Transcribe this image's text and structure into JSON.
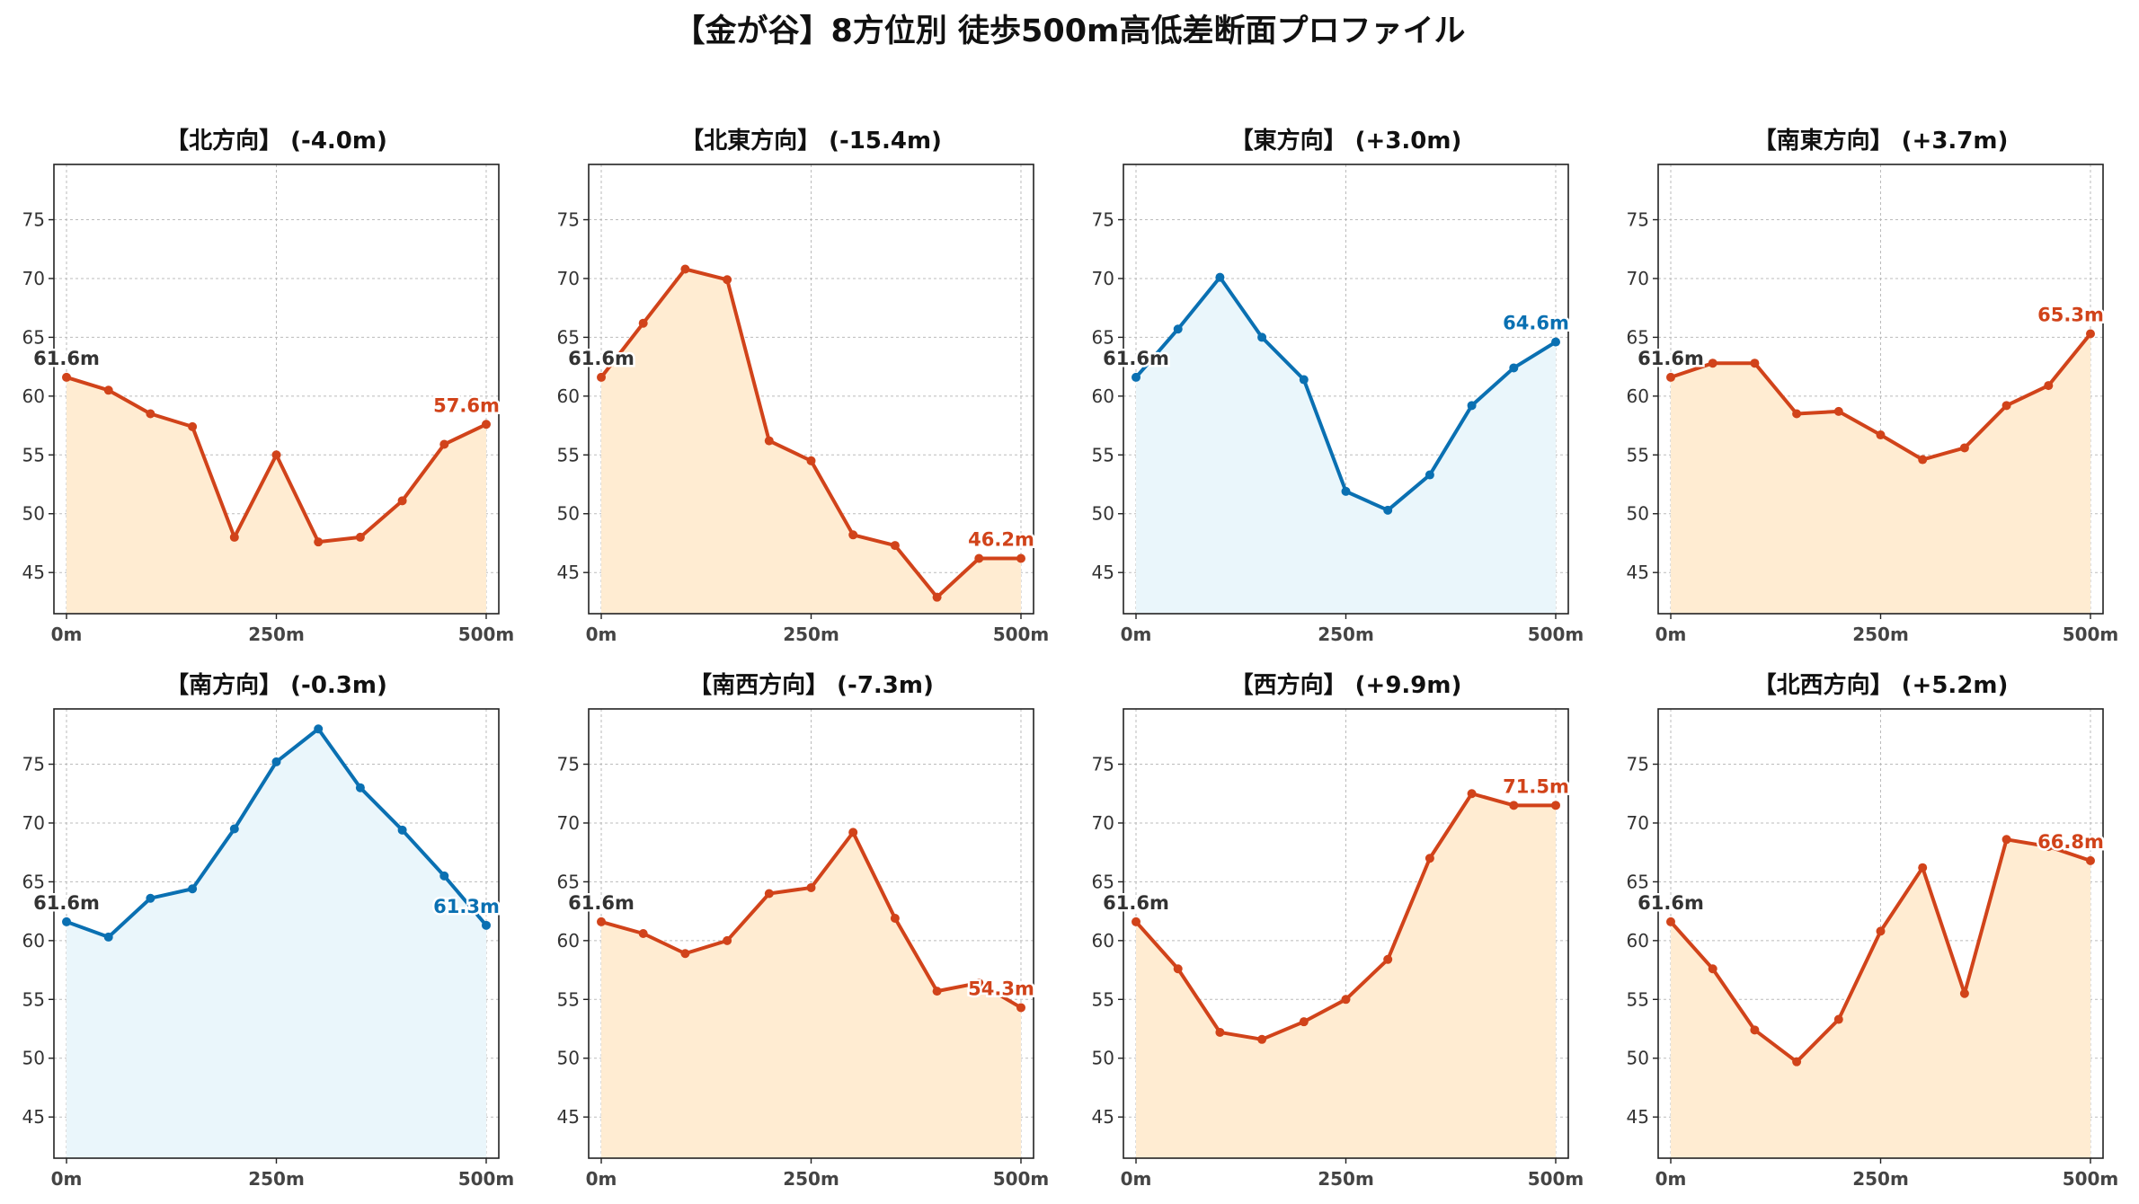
{
  "title": "【金が谷】8方位別 徒歩500m高低差断面プロファイル",
  "colors": {
    "down": "#d1431a",
    "up": "#0a70b2",
    "fill_down": "#ffecd2",
    "fill_up": "#eaf6fb",
    "start_label": "#333333"
  },
  "chart_data": [
    {
      "type": "line",
      "title": "【北方向】 (-4.0m)",
      "trend": "down",
      "x": [
        0,
        50,
        100,
        150,
        200,
        250,
        300,
        350,
        400,
        450,
        500
      ],
      "y": [
        61.6,
        60.5,
        58.5,
        57.4,
        48.0,
        55.0,
        47.6,
        48.0,
        51.1,
        55.9,
        57.6
      ],
      "start_label": "61.6m",
      "end_label": "57.6m"
    },
    {
      "type": "line",
      "title": "【北東方向】 (-15.4m)",
      "trend": "down",
      "x": [
        0,
        50,
        100,
        150,
        200,
        250,
        300,
        350,
        400,
        450,
        500
      ],
      "y": [
        61.6,
        66.2,
        70.8,
        69.9,
        56.2,
        54.5,
        48.2,
        47.3,
        42.9,
        46.2,
        46.2
      ],
      "start_label": "61.6m",
      "end_label": "46.2m"
    },
    {
      "type": "line",
      "title": "【東方向】 (+3.0m)",
      "trend": "up",
      "x": [
        0,
        50,
        100,
        150,
        200,
        250,
        300,
        350,
        400,
        450,
        500
      ],
      "y": [
        61.6,
        65.7,
        70.1,
        65.0,
        61.4,
        51.9,
        50.3,
        53.3,
        59.2,
        62.4,
        64.6
      ],
      "start_label": "61.6m",
      "end_label": "64.6m"
    },
    {
      "type": "line",
      "title": "【南東方向】 (+3.7m)",
      "trend": "down",
      "x": [
        0,
        50,
        100,
        150,
        200,
        250,
        300,
        350,
        400,
        450,
        500
      ],
      "y": [
        61.6,
        62.8,
        62.8,
        58.5,
        58.7,
        56.7,
        54.6,
        55.6,
        59.2,
        60.9,
        65.3
      ],
      "start_label": "61.6m",
      "end_label": "65.3m"
    },
    {
      "type": "line",
      "title": "【南方向】 (-0.3m)",
      "trend": "up",
      "x": [
        0,
        50,
        100,
        150,
        200,
        250,
        300,
        350,
        400,
        450,
        500
      ],
      "y": [
        61.6,
        60.3,
        63.6,
        64.4,
        69.5,
        75.2,
        78.0,
        73.0,
        69.4,
        65.5,
        61.3
      ],
      "start_label": "61.6m",
      "end_label": "61.3m"
    },
    {
      "type": "line",
      "title": "【南西方向】 (-7.3m)",
      "trend": "down",
      "x": [
        0,
        50,
        100,
        150,
        200,
        250,
        300,
        350,
        400,
        450,
        500
      ],
      "y": [
        61.6,
        60.6,
        58.9,
        60.0,
        64.0,
        64.5,
        69.2,
        61.9,
        55.7,
        56.4,
        54.3
      ],
      "start_label": "61.6m",
      "end_label": "54.3m"
    },
    {
      "type": "line",
      "title": "【西方向】 (+9.9m)",
      "trend": "down",
      "x": [
        0,
        50,
        100,
        150,
        200,
        250,
        300,
        350,
        400,
        450,
        500
      ],
      "y": [
        61.6,
        57.6,
        52.2,
        51.6,
        53.1,
        55.0,
        58.4,
        67.0,
        72.5,
        71.5,
        71.5
      ],
      "start_label": "61.6m",
      "end_label": "71.5m"
    },
    {
      "type": "line",
      "title": "【北西方向】 (+5.2m)",
      "trend": "down",
      "x": [
        0,
        50,
        100,
        150,
        200,
        250,
        300,
        350,
        400,
        450,
        500
      ],
      "y": [
        61.6,
        57.6,
        52.4,
        49.7,
        53.3,
        60.8,
        66.2,
        55.5,
        68.6,
        68.0,
        66.8
      ],
      "start_label": "61.6m",
      "end_label": "66.8m"
    }
  ],
  "axes": {
    "xlim": [
      -15,
      515
    ],
    "ylim": [
      41.5,
      79.7
    ],
    "yticks": [
      45,
      50,
      55,
      60,
      65,
      70,
      75
    ],
    "xticks": [
      0,
      250,
      500
    ],
    "xtick_labels": [
      "0m",
      "250m",
      "500m"
    ],
    "grid": true
  }
}
